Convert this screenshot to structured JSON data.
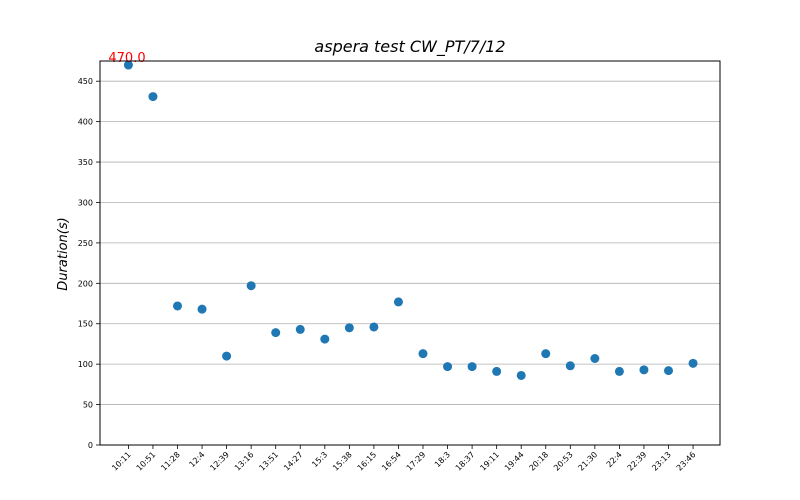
{
  "chart_data": {
    "type": "scatter",
    "title": "aspera test   CW_PT/7/12",
    "xlabel": "",
    "ylabel": "Duration(s)",
    "ylim": [
      0,
      475
    ],
    "yticks": [
      0,
      50,
      100,
      150,
      200,
      250,
      300,
      350,
      400,
      450
    ],
    "grid": "horizontal",
    "categories": [
      "10:11",
      "10:51",
      "11:28",
      "12:4",
      "12:39",
      "13:16",
      "13:51",
      "14:27",
      "15:3",
      "15:38",
      "16:15",
      "16:54",
      "17:29",
      "18:3",
      "18:37",
      "19:11",
      "19:44",
      "20:18",
      "20:53",
      "21:30",
      "22:4",
      "22:39",
      "23:13",
      "23:46"
    ],
    "values": [
      470,
      431,
      172,
      168,
      110,
      197,
      139,
      143,
      131,
      145,
      146,
      177,
      113,
      97,
      97,
      91,
      86,
      113,
      98,
      107,
      91,
      93,
      92,
      101
    ],
    "color": "#1f77b4",
    "annotations": [
      {
        "text": "470.0",
        "index": 0,
        "color": "#ff0000"
      }
    ]
  }
}
